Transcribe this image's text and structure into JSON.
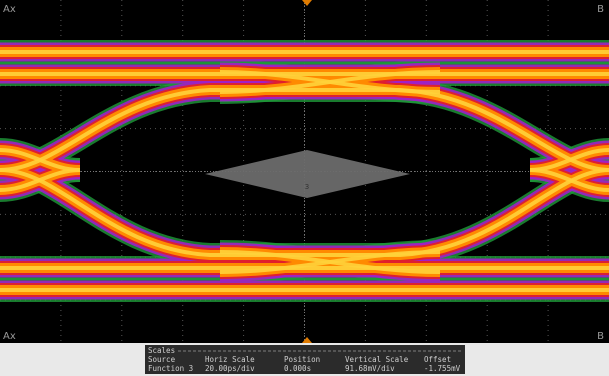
{
  "screen": {
    "corner_labels": [
      "Ax",
      "B",
      "Ax",
      "B"
    ],
    "mask_label": "3"
  },
  "scales": {
    "title": "Scales",
    "headers": [
      "Source",
      "Horiz Scale",
      "Position",
      "Vertical Scale",
      "Offset"
    ],
    "row": [
      "Function 3",
      "20.00ps/div",
      "0.000s",
      "91.68mV/div",
      "-1.755mV"
    ]
  }
}
